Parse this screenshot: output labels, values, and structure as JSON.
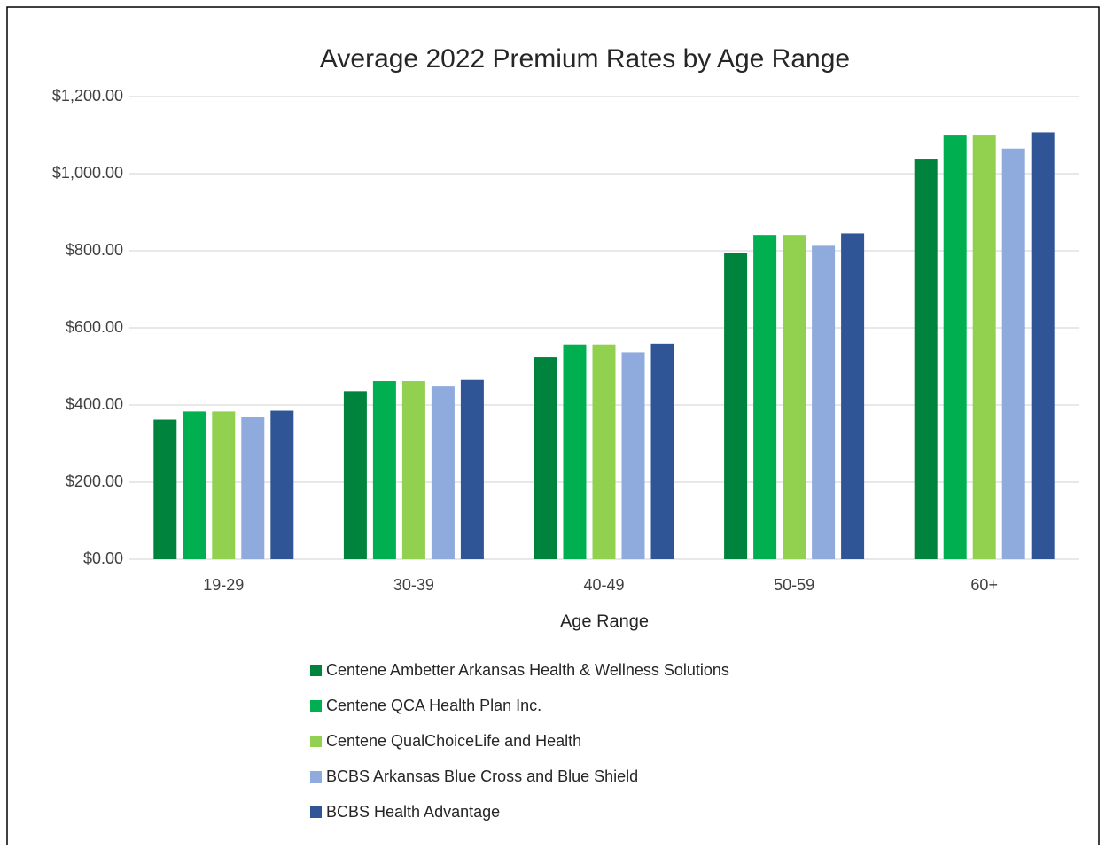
{
  "chart_data": {
    "type": "bar",
    "title": "Average 2022 Premium Rates by Age Range",
    "x_label": "Age Range",
    "categories": [
      "19-29",
      "30-39",
      "40-49",
      "50-59",
      "60+"
    ],
    "series": [
      {
        "name": "Centene Ambetter Arkansas Health & Wellness Solutions",
        "color": "#00843d",
        "values": [
          362,
          436,
          524,
          794,
          1039
        ]
      },
      {
        "name": "Centene QCA Health Plan Inc.",
        "color": "#00b050",
        "values": [
          383,
          462,
          557,
          841,
          1101
        ]
      },
      {
        "name": "Centene QualChoiceLife and Health",
        "color": "#92d050",
        "values": [
          383,
          462,
          557,
          841,
          1101
        ]
      },
      {
        "name": "BCBS Arkansas Blue Cross and Blue Shield",
        "color": "#8faadc",
        "values": [
          370,
          448,
          537,
          813,
          1065
        ]
      },
      {
        "name": "BCBS Health Advantage",
        "color": "#2f5597",
        "values": [
          385,
          465,
          559,
          845,
          1107
        ]
      }
    ],
    "ylim": [
      0,
      1200
    ],
    "yticks": [
      {
        "value": 0,
        "label": "$0.00"
      },
      {
        "value": 200,
        "label": "$200.00"
      },
      {
        "value": 400,
        "label": "$400.00"
      },
      {
        "value": 600,
        "label": "$600.00"
      },
      {
        "value": 800,
        "label": "$800.00"
      },
      {
        "value": 1000,
        "label": "$1,000.00"
      },
      {
        "value": 1200,
        "label": "$1,200.00"
      }
    ],
    "grid": true,
    "legend": "bottom"
  }
}
